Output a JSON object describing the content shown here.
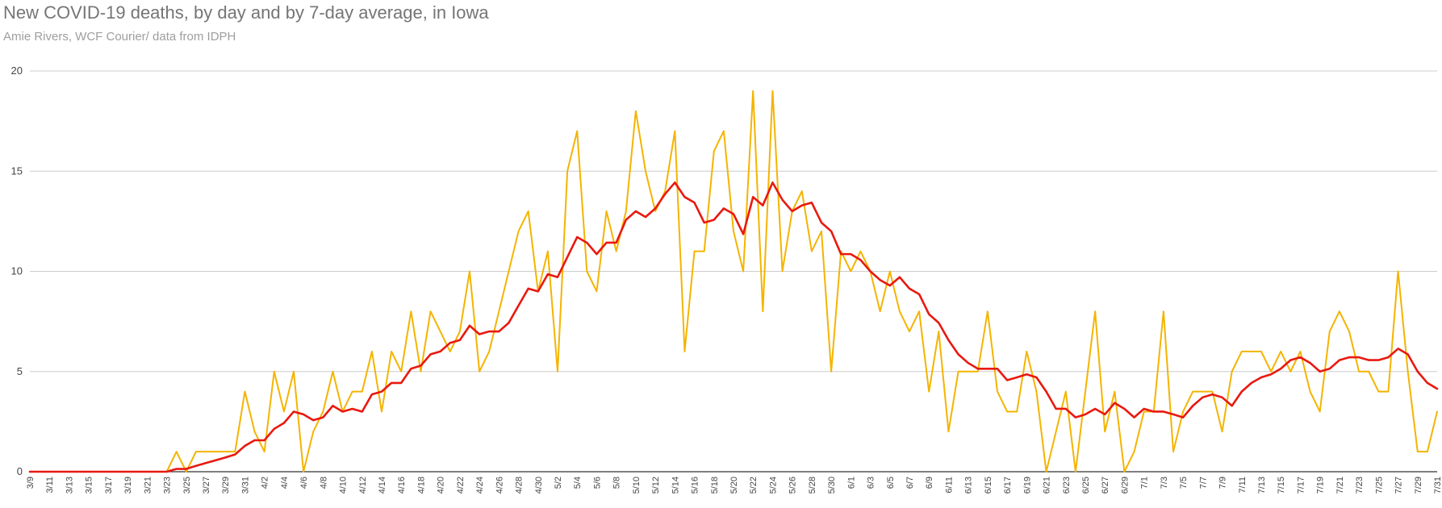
{
  "chart_data": {
    "type": "line",
    "title": "New COVID-19 deaths, by day and by 7-day average, in Iowa",
    "subtitle": "Amie Rivers, WCF Courier/ data from IDPH",
    "xlabel": "",
    "ylabel": "",
    "ylim": [
      0,
      20
    ],
    "yticks": [
      "0",
      "5",
      "10",
      "15",
      "20"
    ],
    "grid": true,
    "legend": "none",
    "x": [
      "3/9",
      "3/10",
      "3/11",
      "3/12",
      "3/13",
      "3/14",
      "3/15",
      "3/16",
      "3/17",
      "3/18",
      "3/19",
      "3/20",
      "3/21",
      "3/22",
      "3/23",
      "3/24",
      "3/25",
      "3/26",
      "3/27",
      "3/28",
      "3/29",
      "3/30",
      "3/31",
      "4/1",
      "4/2",
      "4/3",
      "4/4",
      "4/5",
      "4/6",
      "4/7",
      "4/8",
      "4/9",
      "4/10",
      "4/11",
      "4/12",
      "4/13",
      "4/14",
      "4/15",
      "4/16",
      "4/17",
      "4/18",
      "4/19",
      "4/20",
      "4/21",
      "4/22",
      "4/23",
      "4/24",
      "4/25",
      "4/26",
      "4/27",
      "4/28",
      "4/29",
      "4/30",
      "5/1",
      "5/2",
      "5/3",
      "5/4",
      "5/5",
      "5/6",
      "5/7",
      "5/8",
      "5/9",
      "5/10",
      "5/11",
      "5/12",
      "5/13",
      "5/14",
      "5/15",
      "5/16",
      "5/17",
      "5/18",
      "5/19",
      "5/20",
      "5/21",
      "5/22",
      "5/23",
      "5/24",
      "5/25",
      "5/26",
      "5/27",
      "5/28",
      "5/29",
      "5/30",
      "5/31",
      "6/1",
      "6/2",
      "6/3",
      "6/4",
      "6/5",
      "6/6",
      "6/7",
      "6/8",
      "6/9",
      "6/10",
      "6/11",
      "6/12",
      "6/13",
      "6/14",
      "6/15",
      "6/16",
      "6/17",
      "6/18",
      "6/19",
      "6/20",
      "6/21",
      "6/22",
      "6/23",
      "6/24",
      "6/25",
      "6/26",
      "6/27",
      "6/28",
      "6/29",
      "6/30",
      "7/1",
      "7/2",
      "7/3",
      "7/4",
      "7/5",
      "7/6",
      "7/7",
      "7/8",
      "7/9",
      "7/10",
      "7/11",
      "7/12",
      "7/13",
      "7/14",
      "7/15",
      "7/16",
      "7/17",
      "7/18",
      "7/19",
      "7/20",
      "7/21",
      "7/22",
      "7/23",
      "7/24",
      "7/25",
      "7/26",
      "7/27",
      "7/28",
      "7/29",
      "7/30",
      "7/31"
    ],
    "x_tick_labels": [
      "3/9",
      "3/11",
      "3/13",
      "3/15",
      "3/17",
      "3/19",
      "3/21",
      "3/23",
      "3/25",
      "3/27",
      "3/29",
      "3/31",
      "4/2",
      "4/4",
      "4/6",
      "4/8",
      "4/10",
      "4/12",
      "4/14",
      "4/16",
      "4/18",
      "4/20",
      "4/22",
      "4/24",
      "4/26",
      "4/28",
      "4/30",
      "5/2",
      "5/4",
      "5/6",
      "5/8",
      "5/10",
      "5/12",
      "5/14",
      "5/16",
      "5/18",
      "5/20",
      "5/22",
      "5/24",
      "5/26",
      "5/28",
      "5/30",
      "6/1",
      "6/3",
      "6/5",
      "6/7",
      "6/9",
      "6/11",
      "6/13",
      "6/15",
      "6/17",
      "6/19",
      "6/21",
      "6/23",
      "6/25",
      "6/27",
      "6/29",
      "7/1",
      "7/3",
      "7/5",
      "7/7",
      "7/9",
      "7/11",
      "7/13",
      "7/15",
      "7/17",
      "7/19",
      "7/21",
      "7/23",
      "7/25",
      "7/27",
      "7/29",
      "7/31"
    ],
    "series": [
      {
        "color": "#f4b400",
        "values": [
          0,
          0,
          0,
          0,
          0,
          0,
          0,
          0,
          0,
          0,
          0,
          0,
          0,
          0,
          0,
          1,
          0,
          1,
          1,
          1,
          1,
          1,
          4,
          2,
          1,
          5,
          3,
          5,
          0,
          2,
          3,
          5,
          3,
          4,
          4,
          6,
          3,
          6,
          5,
          8,
          5,
          8,
          7,
          6,
          7,
          10,
          5,
          6,
          8,
          10,
          12,
          13,
          9,
          11,
          5,
          15,
          17,
          10,
          9,
          13,
          11,
          13,
          18,
          15,
          13,
          14,
          17,
          6,
          11,
          11,
          16,
          17,
          12,
          10,
          19,
          8,
          19,
          10,
          13,
          14,
          11,
          12,
          5,
          11,
          10,
          11,
          10,
          8,
          10,
          8,
          7,
          8,
          4,
          7,
          2,
          5,
          5,
          5,
          8,
          4,
          3,
          3,
          6,
          4,
          0,
          2,
          4,
          0,
          4,
          8,
          2,
          4,
          0,
          1,
          3,
          3,
          8,
          1,
          3,
          4,
          4,
          4,
          2,
          5,
          6,
          6,
          6,
          5,
          6,
          5,
          6,
          4,
          3,
          7,
          8,
          7,
          5,
          5,
          4,
          4,
          10,
          5,
          1,
          1,
          3
        ]
      },
      {
        "color": "#e8190f",
        "values": [
          0,
          0,
          0,
          0,
          0,
          0,
          0,
          0,
          0,
          0,
          0,
          0,
          0,
          0,
          0,
          0.14,
          0.14,
          0.29,
          0.43,
          0.57,
          0.71,
          0.86,
          1.29,
          1.57,
          1.57,
          2.14,
          2.43,
          3.0,
          2.86,
          2.57,
          2.71,
          3.29,
          3.0,
          3.14,
          3.0,
          3.86,
          4.0,
          4.43,
          4.43,
          5.14,
          5.29,
          5.86,
          6.0,
          6.43,
          6.57,
          7.29,
          6.86,
          7.0,
          7.0,
          7.43,
          8.29,
          9.14,
          9.0,
          9.86,
          9.71,
          10.71,
          11.71,
          11.43,
          10.86,
          11.43,
          11.43,
          12.57,
          13.0,
          12.71,
          13.14,
          13.86,
          14.43,
          13.71,
          13.43,
          12.43,
          12.57,
          13.14,
          12.86,
          11.86,
          13.71,
          13.29,
          14.43,
          13.57,
          13.0,
          13.29,
          13.43,
          12.43,
          12.0,
          10.86,
          10.86,
          10.57,
          10.0,
          9.57,
          9.29,
          9.71,
          9.14,
          8.86,
          7.86,
          7.43,
          6.57,
          5.86,
          5.43,
          5.14,
          5.14,
          5.14,
          4.57,
          4.71,
          4.86,
          4.71,
          4.0,
          3.14,
          3.14,
          2.71,
          2.86,
          3.14,
          2.86,
          3.43,
          3.14,
          2.71,
          3.14,
          3.0,
          3.0,
          2.86,
          2.71,
          3.29,
          3.71,
          3.86,
          3.71,
          3.29,
          4.0,
          4.43,
          4.71,
          4.86,
          5.14,
          5.57,
          5.71,
          5.43,
          5.0,
          5.14,
          5.57,
          5.71,
          5.71,
          5.57,
          5.57,
          5.71,
          6.14,
          5.86,
          5.0,
          4.43,
          4.14
        ]
      }
    ]
  }
}
